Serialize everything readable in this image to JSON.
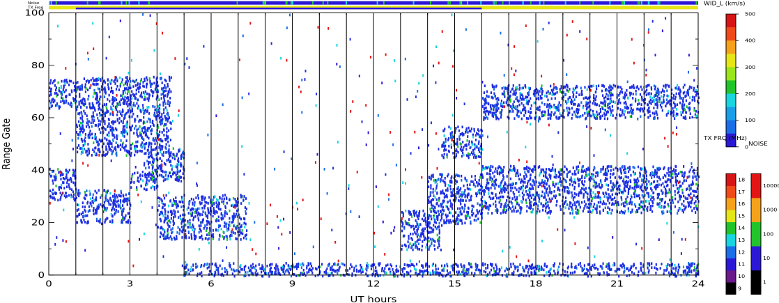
{
  "chart_data": {
    "type": "heatmap",
    "top_strips": {
      "noise_label": "Noise",
      "txfreq_label": "TX Freq"
    },
    "xlabel": "UT hours",
    "ylabel": "Range Gate",
    "xlim": [
      0,
      24
    ],
    "ylim": [
      0,
      100
    ],
    "xticks": [
      0,
      3,
      6,
      9,
      12,
      15,
      18,
      21,
      24
    ],
    "yticks": [
      0,
      20,
      40,
      60,
      80,
      100
    ],
    "scan_boundaries_hours": [
      1,
      2,
      3,
      4,
      5,
      6,
      7,
      8,
      9,
      10,
      11,
      12,
      13,
      14,
      15,
      16,
      17,
      18,
      19,
      20,
      21,
      22,
      23
    ],
    "echo_bands": [
      {
        "t0": 0,
        "t1": 1,
        "g0": 29,
        "g1": 41,
        "color": "#1f2fe0"
      },
      {
        "t0": 1,
        "t1": 3,
        "g0": 20,
        "g1": 33,
        "color": "#1f2fe0"
      },
      {
        "t0": 3,
        "t1": 4,
        "g0": 33,
        "g1": 40,
        "color": "#1f2fe0"
      },
      {
        "t0": 3.5,
        "t1": 5,
        "g0": 36,
        "g1": 49,
        "color": "#1f2fe0"
      },
      {
        "t0": 4,
        "t1": 7.3,
        "g0": 14,
        "g1": 31,
        "color": "#1f2fe0"
      },
      {
        "t0": 13,
        "t1": 14.5,
        "g0": 10,
        "g1": 25,
        "color": "#1f2fe0"
      },
      {
        "t0": 14,
        "t1": 16,
        "g0": 20,
        "g1": 39,
        "color": "#1f2fe0"
      },
      {
        "t0": 16,
        "t1": 24,
        "g0": 24,
        "g1": 42,
        "color": "#1f2fe0"
      },
      {
        "t0": 16,
        "t1": 24,
        "g0": 60,
        "g1": 73,
        "color": "#1f2fe0"
      },
      {
        "t0": 0,
        "t1": 1,
        "g0": 64,
        "g1": 75,
        "color": "#1f2fe0"
      },
      {
        "t0": 1,
        "t1": 4.5,
        "g0": 46,
        "g1": 76,
        "color": "#1f2fe0"
      },
      {
        "t0": 4.9,
        "t1": 24,
        "g0": 0,
        "g1": 5,
        "color": "#1f2fe0"
      },
      {
        "t0": 14.5,
        "t1": 16,
        "g0": 45,
        "g1": 57,
        "color": "#1f2fe0"
      }
    ],
    "wid_colorbar": {
      "label": "WID_L (km/s)",
      "ticks": [
        0,
        100,
        200,
        300,
        400,
        500
      ],
      "range": [
        0,
        500
      ]
    },
    "txfreq_colorbar": {
      "label": "TX FRQ (MHz)",
      "ticks": [
        9,
        10,
        11,
        12,
        13,
        14,
        15,
        16,
        17,
        18
      ],
      "colors": [
        "#000000",
        "#6a1a8a",
        "#2b18d6",
        "#1a6ee8",
        "#18d6e0",
        "#22c42b",
        "#e6e616",
        "#f5a21a",
        "#f04a1a",
        "#d81515"
      ]
    },
    "noise_colorbar": {
      "label": "NOISE",
      "ticks": [
        "1",
        "10",
        "100",
        "1000",
        "10000"
      ],
      "colors": [
        "#000000",
        "#2b18d6",
        "#22c42b",
        "#f5a21a",
        "#e41515"
      ]
    }
  }
}
